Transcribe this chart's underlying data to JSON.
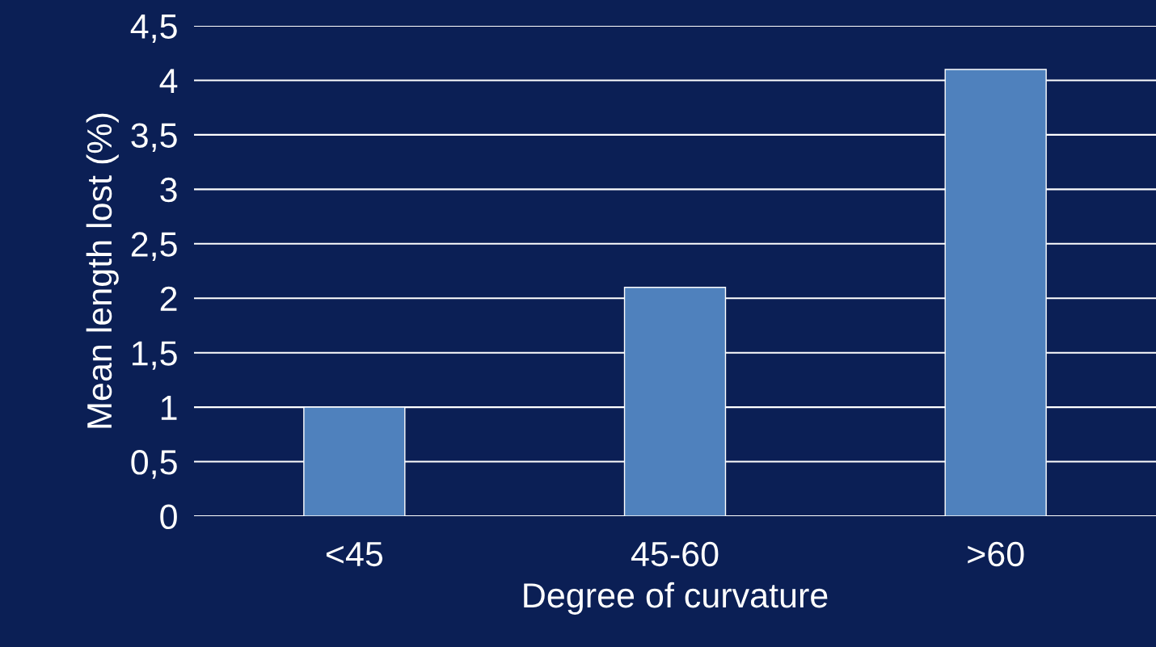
{
  "chart_data": {
    "type": "bar",
    "xlabel": "Degree of curvature",
    "ylabel": "Mean length lost (%)",
    "categories": [
      "<45",
      "45-60",
      ">60"
    ],
    "values": [
      1.0,
      2.1,
      4.1
    ],
    "color": "#4f81bd",
    "ylim": [
      0,
      4.5
    ],
    "yticks": [
      0,
      {
        "value": 0.5,
        "label": "0,5"
      },
      1,
      {
        "value": 1.5,
        "label": "1,5"
      },
      2,
      {
        "value": 2.5,
        "label": "2,5"
      },
      3,
      {
        "value": 3.5,
        "label": "3,5"
      },
      4,
      {
        "value": 4.5,
        "label": "4,5"
      }
    ],
    "grid": "y",
    "legend": false
  }
}
